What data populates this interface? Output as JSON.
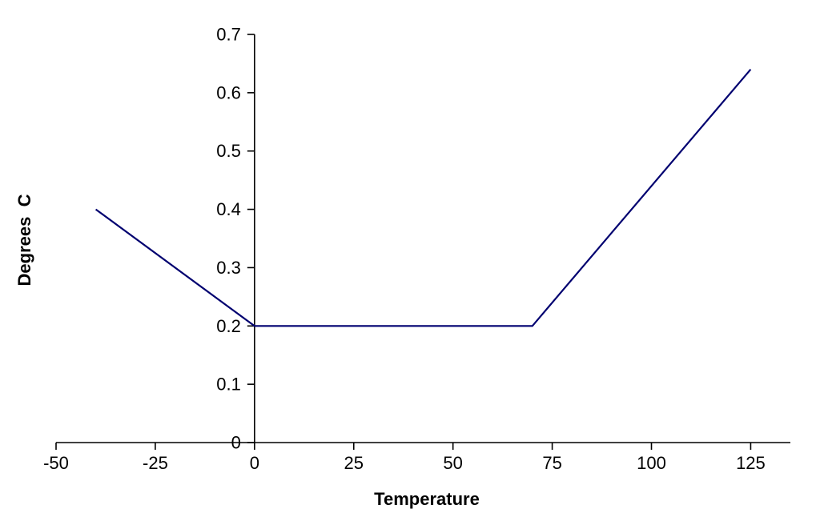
{
  "window": {
    "background_color": "#ffffff"
  },
  "chart_data": {
    "type": "line",
    "title": "",
    "xlabel": "Temperature",
    "ylabel": "Degrees  C",
    "xlim": [
      -50,
      135
    ],
    "ylim": [
      0,
      0.7
    ],
    "x_ticks": [
      -50,
      -25,
      0,
      25,
      50,
      75,
      100,
      125
    ],
    "x_tick_labels": [
      "-50",
      "-25",
      "0",
      "25",
      "50",
      "75",
      "100",
      "125"
    ],
    "y_ticks": [
      0,
      0.1,
      0.2,
      0.3,
      0.4,
      0.5,
      0.6,
      0.7
    ],
    "y_tick_labels": [
      "0",
      "0.1",
      "0.2",
      "0.3",
      "0.4",
      "0.5",
      "0.6",
      "0.7"
    ],
    "grid": false,
    "legend": "none",
    "value_axis_crosses_at_x": 0,
    "category_axis_crosses_at_y": 0,
    "axis_color": "#000000",
    "series": [
      {
        "color": "#000070",
        "points": [
          [
            -40,
            0.4
          ],
          [
            0,
            0.2
          ],
          [
            70,
            0.2
          ],
          [
            125,
            0.64
          ]
        ]
      }
    ]
  }
}
